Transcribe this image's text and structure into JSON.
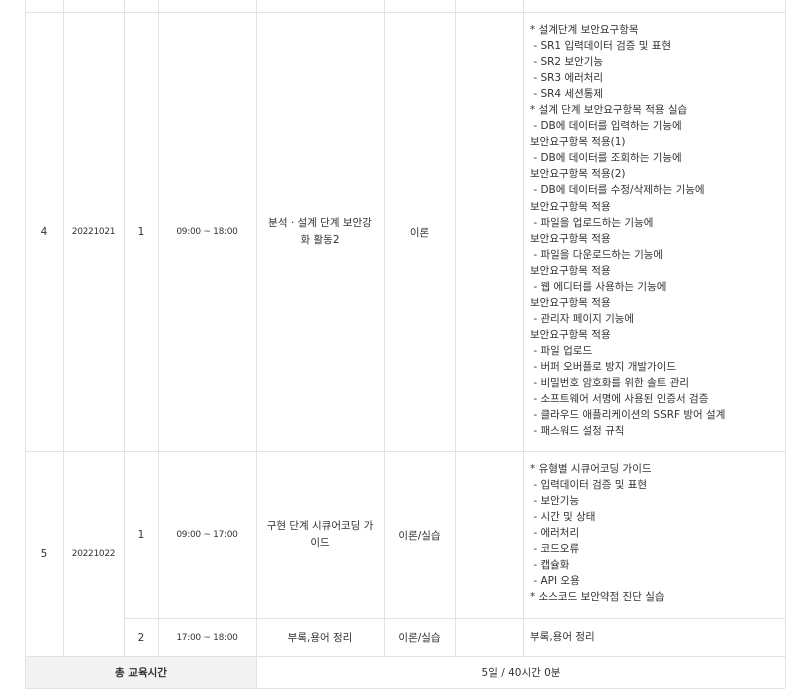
{
  "rows": [
    {
      "no": "4",
      "date": "20221021",
      "sessions": [
        {
          "session": "1",
          "time": "09:00 ~ 18:00",
          "title": "분석 · 설계 단계 보안강화 활동2",
          "type": "이론",
          "content": [
            "* 설계단계 보안요구항목",
            " - SR1 입력데이터 검증 및 표현",
            " - SR2 보안기능",
            " - SR3 에러처리",
            " - SR4 세션통제",
            "* 설계 단계 보안요구항목 적용 실습",
            " - DB에 데이터를 입력하는 기능에",
            "보안요구항목 적용(1)",
            " - DB에 데이터를 조회하는 기능에",
            "보안요구항목 적용(2)",
            " - DB에 데이터를 수정/삭제하는 기능에",
            "보안요구항목 적용",
            " - 파일을 업로드하는 기능에",
            "보안요구항목 적용",
            " - 파일을 다운로드하는 기능에",
            "보안요구항목 적용",
            " - 웹 에디터를 사용하는 기능에",
            "보안요구항목 적용",
            " - 관리자 페이지 기능에",
            "보안요구항목 적용",
            " - 파일 업로드",
            " - 버퍼 오버플로 방지 개발가이드",
            " - 비밀번호 암호화를 위한 솔트 관리",
            " - 소프트웨어 서명에 사용된 인증서 검증",
            " - 클라우드 애플리케이션의 SSRF 방어 설계",
            " - 패스워드 설정 규칙"
          ]
        }
      ]
    },
    {
      "no": "5",
      "date": "20221022",
      "sessions": [
        {
          "session": "1",
          "time": "09:00 ~ 17:00",
          "title": "구현 단계 시큐어코딩 가이드",
          "type": "이론/실습",
          "content": [
            "* 유형별 시큐어코딩 가이드",
            " - 입력데이터 검증 및 표현",
            " - 보안기능",
            " - 시간 및 상태",
            " - 에러처리",
            " - 코드오류",
            " - 캡슐화",
            " - API 오용",
            "* 소스코드 보안약점 진단 실습"
          ]
        },
        {
          "session": "2",
          "time": "17:00 ~ 18:00",
          "title": "부록,용어 정리",
          "type": "이론/실습",
          "content": [
            "부록,용어 정리"
          ]
        }
      ]
    }
  ],
  "total": {
    "label": "총 교육시간",
    "value": "5일 / 40시간 0분"
  }
}
